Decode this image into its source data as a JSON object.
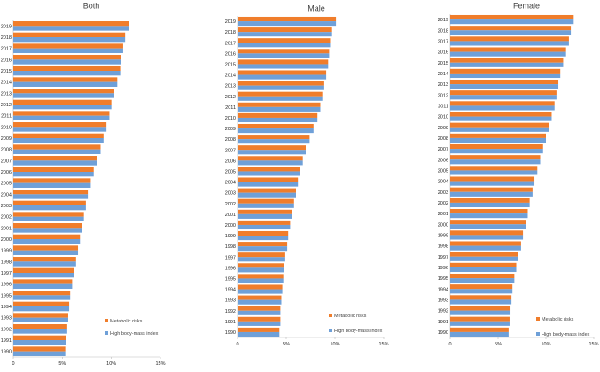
{
  "colors": {
    "metabolic": "#F07D2B",
    "bmi": "#6FA0D8"
  },
  "chart_data": [
    {
      "type": "bar",
      "orientation": "horizontal",
      "title": "Both",
      "categories": [
        "1990",
        "1991",
        "1992",
        "1993",
        "1994",
        "1995",
        "1996",
        "1997",
        "1998",
        "1999",
        "2000",
        "2001",
        "2002",
        "2003",
        "2004",
        "2005",
        "2006",
        "2007",
        "2008",
        "2009",
        "2010",
        "2011",
        "2012",
        "2013",
        "2014",
        "2015",
        "2016",
        "2017",
        "2018",
        "2019"
      ],
      "xlim": [
        0,
        15
      ],
      "xticks": [
        "0",
        "5%",
        "10%",
        "15%"
      ],
      "legend": "lower-left",
      "series": [
        {
          "name": "Metabolic risks",
          "values": [
            5.3,
            5.4,
            5.5,
            5.6,
            5.7,
            5.8,
            6.0,
            6.2,
            6.4,
            6.6,
            6.8,
            7.0,
            7.2,
            7.4,
            7.6,
            7.9,
            8.2,
            8.5,
            8.9,
            9.2,
            9.5,
            9.8,
            10.0,
            10.3,
            10.6,
            10.9,
            11.0,
            11.2,
            11.4,
            11.8
          ]
        },
        {
          "name": "High body-mass index",
          "values": [
            5.3,
            5.4,
            5.5,
            5.6,
            5.7,
            5.8,
            6.0,
            6.2,
            6.4,
            6.6,
            6.8,
            7.0,
            7.2,
            7.4,
            7.6,
            7.9,
            8.2,
            8.5,
            8.9,
            9.2,
            9.5,
            9.8,
            10.0,
            10.3,
            10.6,
            10.9,
            11.0,
            11.2,
            11.4,
            11.8
          ]
        }
      ]
    },
    {
      "type": "bar",
      "orientation": "horizontal",
      "title": "Male",
      "categories": [
        "1990",
        "1991",
        "1992",
        "1993",
        "1994",
        "1995",
        "1996",
        "1997",
        "1998",
        "1999",
        "2000",
        "2001",
        "2002",
        "2003",
        "2004",
        "2005",
        "2006",
        "2007",
        "2008",
        "2009",
        "2010",
        "2011",
        "2012",
        "2013",
        "2014",
        "2015",
        "2016",
        "2017",
        "2018",
        "2019"
      ],
      "xlim": [
        0,
        15
      ],
      "xticks": [
        "0",
        "5%",
        "10%",
        "15%"
      ],
      "legend": "lower-left",
      "series": [
        {
          "name": "Metabolic risks",
          "values": [
            4.3,
            4.4,
            4.4,
            4.5,
            4.6,
            4.7,
            4.8,
            4.9,
            5.1,
            5.2,
            5.4,
            5.6,
            5.8,
            6.0,
            6.2,
            6.4,
            6.7,
            7.0,
            7.4,
            7.8,
            8.2,
            8.5,
            8.7,
            8.9,
            9.1,
            9.3,
            9.4,
            9.5,
            9.7,
            10.1
          ]
        },
        {
          "name": "High body-mass index",
          "values": [
            4.3,
            4.4,
            4.4,
            4.5,
            4.6,
            4.7,
            4.8,
            4.9,
            5.1,
            5.2,
            5.4,
            5.6,
            5.8,
            6.0,
            6.2,
            6.4,
            6.7,
            7.0,
            7.4,
            7.8,
            8.2,
            8.5,
            8.7,
            8.9,
            9.1,
            9.3,
            9.4,
            9.5,
            9.7,
            10.1
          ]
        }
      ]
    },
    {
      "type": "bar",
      "orientation": "horizontal",
      "title": "Female",
      "categories": [
        "1990",
        "1991",
        "1992",
        "1993",
        "1994",
        "1995",
        "1996",
        "1997",
        "1998",
        "1999",
        "2000",
        "2001",
        "2002",
        "2003",
        "2004",
        "2005",
        "2006",
        "2007",
        "2008",
        "2009",
        "2010",
        "2011",
        "2012",
        "2013",
        "2014",
        "2015",
        "2016",
        "2017",
        "2018",
        "2019"
      ],
      "xlim": [
        0,
        15
      ],
      "xticks": [
        "0",
        "5%",
        "10%",
        "15%"
      ],
      "legend": "lower-left",
      "series": [
        {
          "name": "Metabolic risks",
          "values": [
            6.1,
            6.2,
            6.3,
            6.4,
            6.5,
            6.7,
            6.9,
            7.1,
            7.4,
            7.6,
            7.9,
            8.1,
            8.3,
            8.6,
            8.8,
            9.1,
            9.4,
            9.7,
            10.0,
            10.3,
            10.6,
            10.9,
            11.1,
            11.3,
            11.5,
            11.8,
            12.1,
            12.4,
            12.6,
            12.9
          ]
        },
        {
          "name": "High body-mass index",
          "values": [
            6.1,
            6.2,
            6.3,
            6.4,
            6.5,
            6.7,
            6.9,
            7.1,
            7.4,
            7.6,
            7.9,
            8.1,
            8.3,
            8.6,
            8.8,
            9.1,
            9.4,
            9.7,
            10.0,
            10.3,
            10.6,
            10.9,
            11.1,
            11.3,
            11.5,
            11.8,
            12.1,
            12.4,
            12.6,
            12.9
          ]
        }
      ]
    }
  ]
}
